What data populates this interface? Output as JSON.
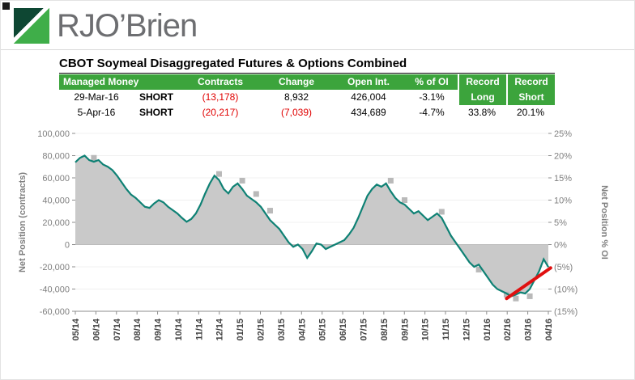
{
  "logo": {
    "text": "RJO’Brien"
  },
  "title": "CBOT Soymeal Disaggregated Futures & Options Combined",
  "table": {
    "headers": {
      "managed_money": "Managed Money",
      "contracts": "Contracts",
      "change": "Change",
      "open_int": "Open Int.",
      "pct_of_oi": "% of OI",
      "record_1": "Record",
      "record_2": "Record",
      "record_long": "Long",
      "record_short": "Short"
    },
    "rows": [
      {
        "date": "29-Mar-16",
        "position": "SHORT",
        "contracts": "(13,178)",
        "change": "8,932",
        "open_int": "426,004",
        "pct_of_oi": "-3.1%"
      },
      {
        "date": "5-Apr-16",
        "position": "SHORT",
        "contracts": "(20,217)",
        "change": "(7,039)",
        "open_int": "434,689",
        "pct_of_oi": "-4.7%",
        "record_long": "33.8%",
        "record_short": "20.1%"
      }
    ]
  },
  "chart_data": {
    "type": "area",
    "title": "",
    "ylabel_left": "Net Position (contracts)",
    "ylabel_right": "Net Position % OI",
    "ylim": [
      -60000,
      100000
    ],
    "grid": false,
    "legend": false,
    "y_axis_left": {
      "labels": [
        "100,000",
        "80,000",
        "60,000",
        "40,000",
        "20,000",
        "0",
        "-20,000",
        "-40,000",
        "-60,000"
      ],
      "values": [
        100000,
        80000,
        60000,
        40000,
        20000,
        0,
        -20000,
        -40000,
        -60000
      ]
    },
    "y_axis_right": {
      "labels": [
        "25%",
        "20%",
        "15%",
        "10%",
        "5%",
        "0%",
        "(5%)",
        "(10%)",
        "(15%)"
      ],
      "values": [
        25,
        20,
        15,
        10,
        5,
        0,
        -5,
        -10,
        -15
      ]
    },
    "x_labels": [
      "05/14",
      "06/14",
      "07/14",
      "08/14",
      "09/14",
      "10/14",
      "11/14",
      "12/14",
      "01/15",
      "02/15",
      "03/15",
      "04/15",
      "05/15",
      "06/15",
      "07/15",
      "08/15",
      "09/15",
      "10/15",
      "11/15",
      "12/15",
      "01/16",
      "02/16",
      "03/16",
      "04/16"
    ],
    "series": [
      {
        "name": "Net Position (contracts)",
        "type": "line-area",
        "color": "#0e8174",
        "fill": "#c9c9c9",
        "values": [
          74000,
          78000,
          80000,
          76000,
          74500,
          76000,
          72000,
          70000,
          67000,
          62000,
          56000,
          50000,
          45000,
          42000,
          38000,
          34000,
          33000,
          37000,
          40000,
          38000,
          34000,
          31000,
          28000,
          24000,
          20500,
          23000,
          28000,
          36000,
          46000,
          55000,
          62000,
          58000,
          50000,
          46000,
          52000,
          55000,
          50000,
          44000,
          41000,
          38000,
          34000,
          28000,
          22000,
          18000,
          14000,
          8000,
          2000,
          -2000,
          0,
          -4000,
          -12000,
          -6000,
          1000,
          0,
          -4000,
          -2000,
          0,
          2000,
          4000,
          9000,
          15000,
          24000,
          34000,
          44000,
          50000,
          54000,
          52000,
          55000,
          48000,
          42000,
          38000,
          36000,
          32000,
          28000,
          30000,
          26000,
          22000,
          25000,
          28000,
          24000,
          16000,
          8000,
          2000,
          -4000,
          -10000,
          -16000,
          -20000,
          -18000,
          -24000,
          -30000,
          -36000,
          -40000,
          -42000,
          -44000,
          -46500,
          -45000,
          -43000,
          -44000,
          -40000,
          -32000,
          -24000,
          -13178,
          -20217
        ]
      },
      {
        "name": "Net Position % OI",
        "type": "square-marker",
        "axis": "right",
        "color": "#b9b9b9",
        "points": [
          {
            "i": 4,
            "v": 78000
          },
          {
            "i": 31,
            "v": 63500
          },
          {
            "i": 36,
            "v": 57500
          },
          {
            "i": 39,
            "v": 45500
          },
          {
            "i": 42,
            "v": 30500
          },
          {
            "i": 68,
            "v": 57500
          },
          {
            "i": 71,
            "v": 40000
          },
          {
            "i": 79,
            "v": 29500
          },
          {
            "i": 87,
            "v": -22500
          },
          {
            "i": 93,
            "v": -45000
          },
          {
            "i": 95,
            "v": -48500
          },
          {
            "i": 98,
            "v": -46500
          }
        ]
      }
    ],
    "annotations": {
      "trend_line": {
        "from_i": 93,
        "from_v": -48500,
        "to_i": 102.5,
        "to_v": -21000,
        "color": "#e01010"
      }
    }
  }
}
